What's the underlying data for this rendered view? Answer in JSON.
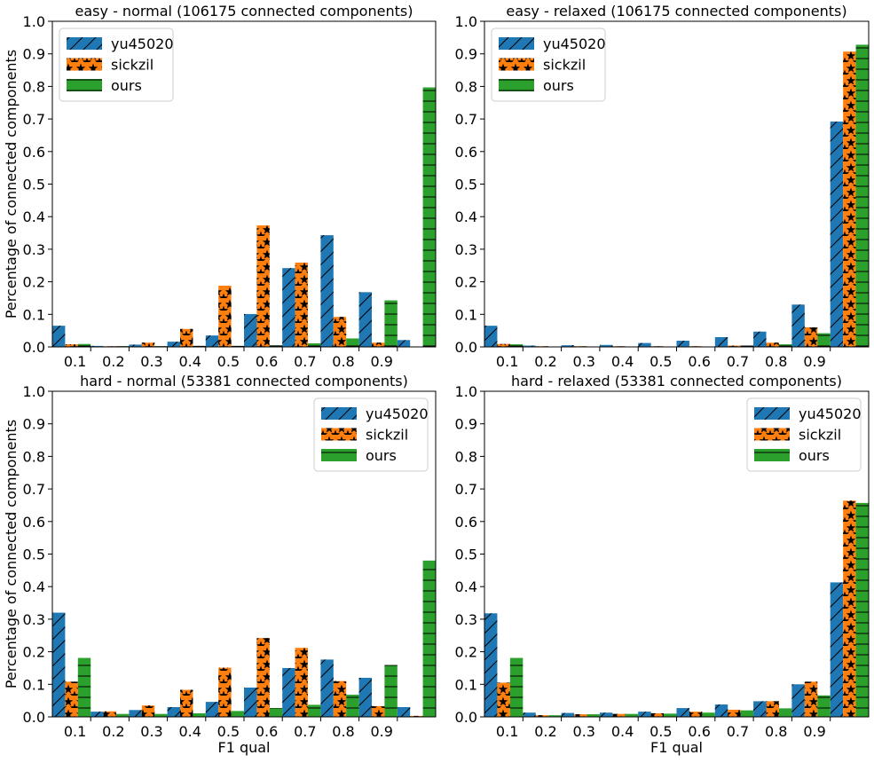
{
  "colors": {
    "yu45020": "#1f77b4",
    "sickzil": "#ff7f0e",
    "ours": "#2ca02c"
  },
  "chart_data": [
    {
      "type": "bar",
      "title": "easy - normal (106175 connected components)",
      "xlabel": "",
      "ylabel": "Percentage of connected components",
      "ylim": [
        0,
        1.0
      ],
      "yticks": [
        "0.0",
        "0.1",
        "0.2",
        "0.3",
        "0.4",
        "0.5",
        "0.6",
        "0.7",
        "0.8",
        "0.9",
        "1.0"
      ],
      "xticks": [
        "0.1",
        "0.2",
        "0.3",
        "0.4",
        "0.5",
        "0.6",
        "0.7",
        "0.8",
        "0.9"
      ],
      "legend_position": "upper-left",
      "series": [
        {
          "name": "yu45020",
          "hatch": "slash",
          "values": [
            0.065,
            0.003,
            0.007,
            0.016,
            0.035,
            0.101,
            0.242,
            0.343,
            0.168,
            0.021
          ]
        },
        {
          "name": "sickzil",
          "hatch": "star",
          "values": [
            0.008,
            0.002,
            0.013,
            0.055,
            0.188,
            0.373,
            0.259,
            0.092,
            0.013,
            0.0
          ]
        },
        {
          "name": "ours",
          "hatch": "horizontal",
          "values": [
            0.009,
            0.002,
            0.002,
            0.003,
            0.003,
            0.005,
            0.011,
            0.026,
            0.143,
            0.797
          ]
        }
      ]
    },
    {
      "type": "bar",
      "title": "easy - relaxed (106175 connected components)",
      "xlabel": "",
      "ylabel": "",
      "ylim": [
        0,
        1.0
      ],
      "yticks": [
        "0.0",
        "0.1",
        "0.2",
        "0.3",
        "0.4",
        "0.5",
        "0.6",
        "0.7",
        "0.8",
        "0.9",
        "1.0"
      ],
      "xticks": [
        "0.1",
        "0.2",
        "0.3",
        "0.4",
        "0.5",
        "0.6",
        "0.7",
        "0.8",
        "0.9"
      ],
      "legend_position": "upper-left",
      "series": [
        {
          "name": "yu45020",
          "hatch": "slash",
          "values": [
            0.065,
            0.004,
            0.005,
            0.006,
            0.012,
            0.019,
            0.03,
            0.047,
            0.13,
            0.692
          ]
        },
        {
          "name": "sickzil",
          "hatch": "star",
          "values": [
            0.009,
            0.002,
            0.002,
            0.002,
            0.002,
            0.002,
            0.004,
            0.013,
            0.06,
            0.907
          ]
        },
        {
          "name": "ours",
          "hatch": "horizontal",
          "values": [
            0.008,
            0.001,
            0.001,
            0.001,
            0.001,
            0.001,
            0.004,
            0.008,
            0.042,
            0.928
          ]
        }
      ]
    },
    {
      "type": "bar",
      "title": "hard - normal (53381 connected components)",
      "xlabel": "F1 qual",
      "ylabel": "Percentage of connected components",
      "ylim": [
        0,
        1.0
      ],
      "yticks": [
        "0.0",
        "0.1",
        "0.2",
        "0.3",
        "0.4",
        "0.5",
        "0.6",
        "0.7",
        "0.8",
        "0.9",
        "1.0"
      ],
      "xticks": [
        "0.1",
        "0.2",
        "0.3",
        "0.4",
        "0.5",
        "0.6",
        "0.7",
        "0.8",
        "0.9"
      ],
      "legend_position": "upper-right",
      "series": [
        {
          "name": "yu45020",
          "hatch": "slash",
          "values": [
            0.32,
            0.016,
            0.021,
            0.03,
            0.046,
            0.09,
            0.15,
            0.176,
            0.12,
            0.03
          ]
        },
        {
          "name": "sickzil",
          "hatch": "star",
          "values": [
            0.108,
            0.017,
            0.035,
            0.083,
            0.151,
            0.242,
            0.212,
            0.11,
            0.033,
            0.003
          ]
        },
        {
          "name": "ours",
          "hatch": "horizontal",
          "values": [
            0.181,
            0.009,
            0.009,
            0.011,
            0.018,
            0.027,
            0.037,
            0.068,
            0.159,
            0.48
          ]
        }
      ]
    },
    {
      "type": "bar",
      "title": "hard - relaxed (53381 connected components)",
      "xlabel": "F1 qual",
      "ylabel": "",
      "ylim": [
        0,
        1.0
      ],
      "yticks": [
        "0.0",
        "0.1",
        "0.2",
        "0.3",
        "0.4",
        "0.5",
        "0.6",
        "0.7",
        "0.8",
        "0.9",
        "1.0"
      ],
      "xticks": [
        "0.1",
        "0.2",
        "0.3",
        "0.4",
        "0.5",
        "0.6",
        "0.7",
        "0.8",
        "0.9"
      ],
      "legend_position": "upper-right",
      "series": [
        {
          "name": "yu45020",
          "hatch": "slash",
          "values": [
            0.318,
            0.013,
            0.012,
            0.013,
            0.016,
            0.027,
            0.038,
            0.048,
            0.1,
            0.413
          ]
        },
        {
          "name": "sickzil",
          "hatch": "star",
          "values": [
            0.105,
            0.005,
            0.008,
            0.009,
            0.011,
            0.016,
            0.022,
            0.048,
            0.108,
            0.664
          ]
        },
        {
          "name": "ours",
          "hatch": "horizontal",
          "values": [
            0.181,
            0.005,
            0.008,
            0.009,
            0.01,
            0.013,
            0.02,
            0.026,
            0.066,
            0.657
          ]
        }
      ]
    }
  ]
}
